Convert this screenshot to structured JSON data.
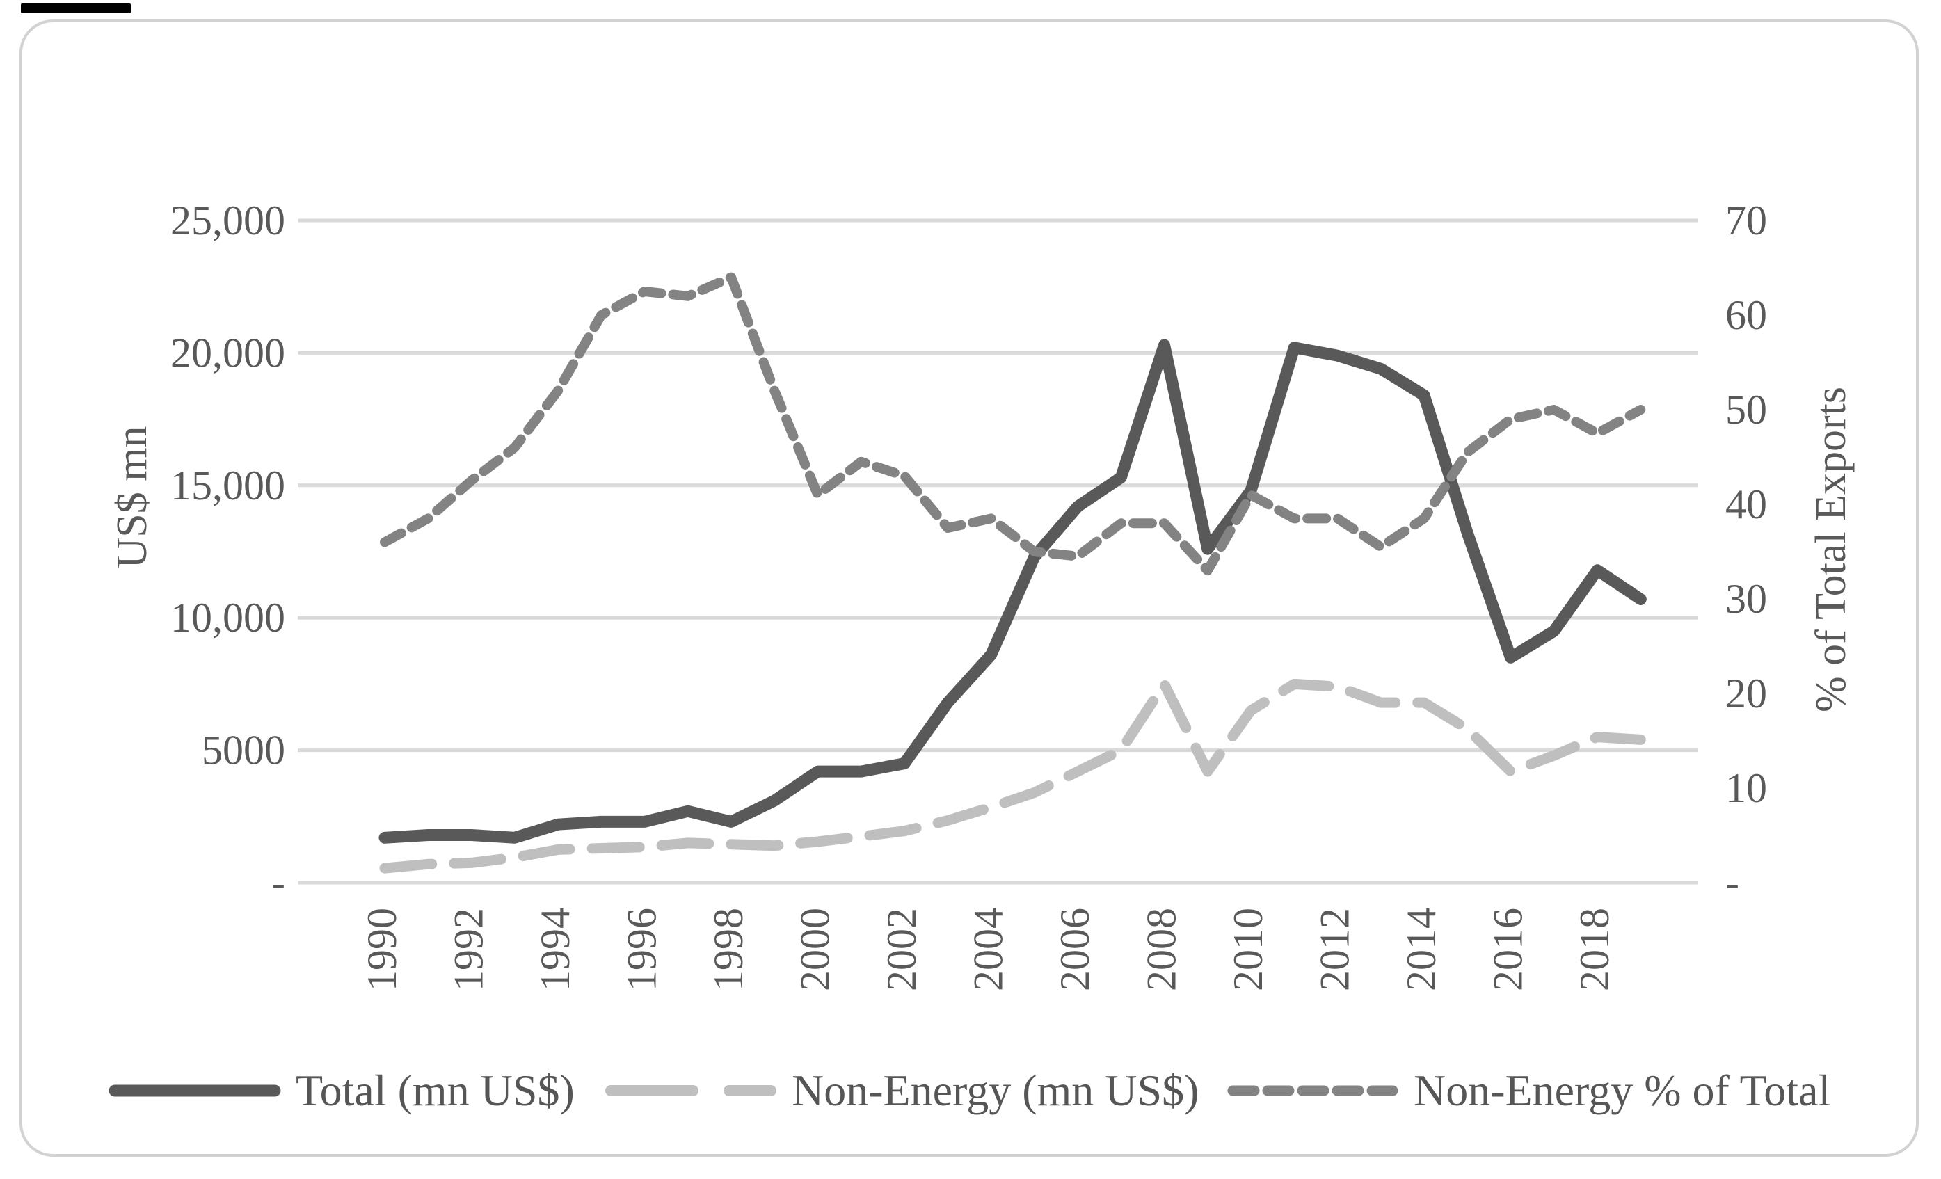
{
  "figure": {
    "background": "#ffffff",
    "border_color": "#d2d2d2",
    "artifact_bar_color": "#000000",
    "gridline_color": "#d9d9d9",
    "text_color": "#595959"
  },
  "chart_data": {
    "type": "line",
    "title": "",
    "x": [
      1990,
      1991,
      1992,
      1993,
      1994,
      1995,
      1996,
      1997,
      1998,
      1999,
      2000,
      2001,
      2002,
      2003,
      2004,
      2005,
      2006,
      2007,
      2008,
      2009,
      2010,
      2011,
      2012,
      2013,
      2014,
      2015,
      2016,
      2017,
      2018,
      2019
    ],
    "series": [
      {
        "name": "Total (mn US$)",
        "axis": "left",
        "color": "#595959",
        "style": "solid",
        "values": [
          1700,
          1800,
          1800,
          1700,
          2200,
          2300,
          2300,
          2700,
          2300,
          3100,
          4200,
          4200,
          4500,
          6800,
          8600,
          12300,
          14200,
          15300,
          20300,
          12600,
          14800,
          20200,
          19900,
          19400,
          18400,
          13200,
          8500,
          9500,
          11800,
          10700
        ]
      },
      {
        "name": "Non-Energy (mn US$)",
        "axis": "left",
        "color": "#bfbfbf",
        "style": "long-dash",
        "values": [
          550,
          700,
          750,
          950,
          1250,
          1300,
          1350,
          1500,
          1450,
          1400,
          1550,
          1750,
          1950,
          2350,
          2850,
          3400,
          4200,
          5000,
          7500,
          4200,
          6500,
          7500,
          7400,
          6800,
          6800,
          5800,
          4200,
          4800,
          5500,
          5400
        ]
      },
      {
        "name": "Non-Energy % of Total",
        "axis": "right",
        "color": "#838383",
        "style": "short-dash",
        "values": [
          36,
          38.5,
          42.5,
          46,
          52,
          60,
          62.5,
          62,
          64,
          52,
          41,
          44.5,
          43,
          37.5,
          38.5,
          35,
          34.5,
          38,
          38,
          33,
          41,
          38.5,
          38.5,
          35.5,
          38.5,
          45.5,
          49,
          50,
          47.5,
          50
        ]
      }
    ],
    "left_axis": {
      "title": "US$ mn",
      "range": [
        0,
        25000
      ],
      "ticks": [
        {
          "label": "25,000",
          "value": 25000
        },
        {
          "label": "20,000",
          "value": 20000
        },
        {
          "label": "15,000",
          "value": 15000
        },
        {
          "label": "10,000",
          "value": 10000
        },
        {
          "label": "5000",
          "value": 5000
        },
        {
          "label": " - ",
          "value": 0
        }
      ]
    },
    "right_axis": {
      "title": "% of Total Exports",
      "range": [
        0,
        70
      ],
      "ticks": [
        {
          "label": "70",
          "value": 70
        },
        {
          "label": "60",
          "value": 60
        },
        {
          "label": "50",
          "value": 50
        },
        {
          "label": "40",
          "value": 40
        },
        {
          "label": "30",
          "value": 30
        },
        {
          "label": "20",
          "value": 20
        },
        {
          "label": "10",
          "value": 10
        },
        {
          "label": " - ",
          "value": 0
        }
      ]
    },
    "x_axis": {
      "labels": [
        "1990",
        "1992",
        "1994",
        "1996",
        "1998",
        "2000",
        "2002",
        "2004",
        "2006",
        "2008",
        "2010",
        "2012",
        "2014",
        "2016",
        "2018"
      ],
      "label_years": [
        1990,
        1992,
        1994,
        1996,
        1998,
        2000,
        2002,
        2004,
        2006,
        2008,
        2010,
        2012,
        2014,
        2016,
        2018
      ]
    },
    "grid": true,
    "legend_position": "bottom"
  }
}
